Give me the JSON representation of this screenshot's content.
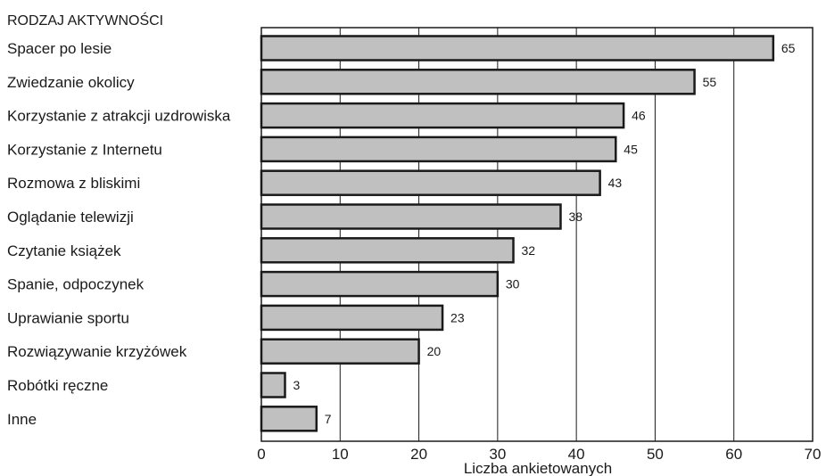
{
  "chart_data": {
    "type": "bar",
    "orientation": "horizontal",
    "title": "",
    "ylabel": "RODZAJ AKTYWNOŚCI",
    "xlabel": "Liczba ankietowanych",
    "categories": [
      "Spacer po lesie",
      "Zwiedzanie okolicy",
      "Korzystanie z atrakcji uzdrowiska",
      "Korzystanie z Internetu",
      "Rozmowa z bliskimi",
      "Oglądanie telewizji",
      "Czytanie książek",
      "Spanie, odpoczynek",
      "Uprawianie sportu",
      "Rozwiązywanie krzyżówek",
      "Robótki ręczne",
      "Inne"
    ],
    "values": [
      65,
      55,
      46,
      45,
      43,
      38,
      32,
      30,
      23,
      20,
      3,
      7
    ],
    "xlim": [
      0,
      70
    ],
    "xticks": [
      "0",
      "10",
      "20",
      "30",
      "40",
      "50",
      "60",
      "70"
    ],
    "grid": "vertical",
    "bar_color": "#c0c0c0",
    "bar_edge_color": "#1a1a1a"
  }
}
